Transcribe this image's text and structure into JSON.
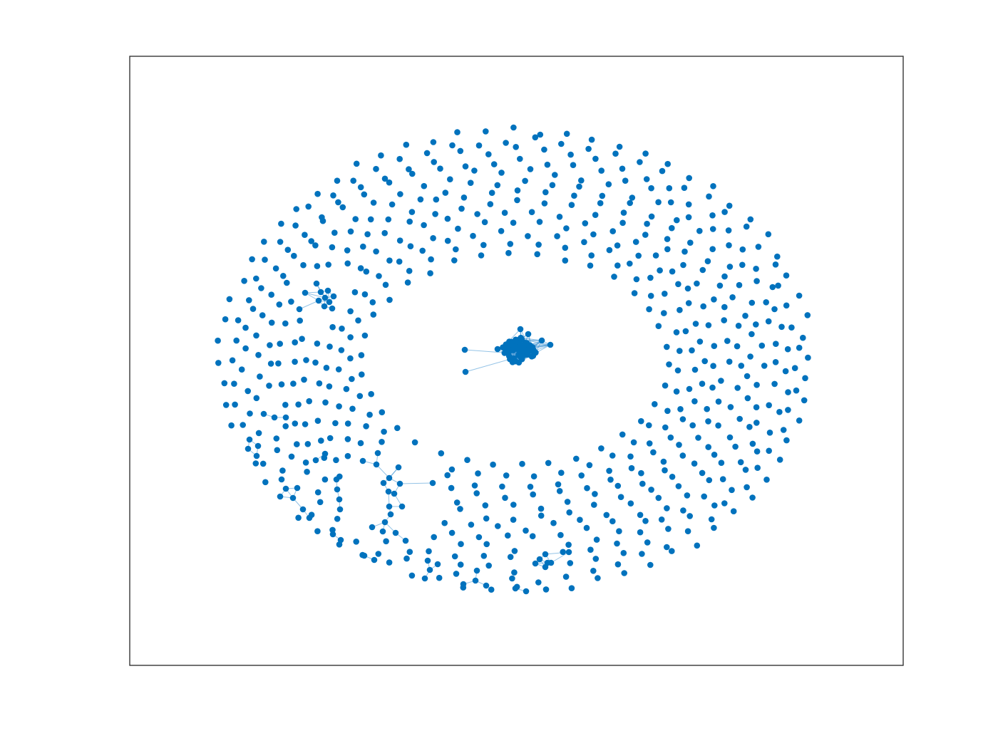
{
  "colors": {
    "node": "#0072BD",
    "edge": "#4D9BD6",
    "frame": "#262626",
    "background": "#FFFFFF"
  },
  "chart_data": {
    "type": "network",
    "title": "",
    "xlabel": "",
    "ylabel": "",
    "axis_ticks": false,
    "grid": false,
    "legend": "none",
    "layout": "force-directed",
    "components": {
      "central_dense_cluster": {
        "visible_approx_nodes": 70,
        "with_pendant_nodes": 2
      },
      "upper_left_dense_cluster": {
        "visible_approx_nodes": 11
      },
      "small_connected_groups_approx": 12,
      "isolated_nodes_approx": 560
    }
  }
}
